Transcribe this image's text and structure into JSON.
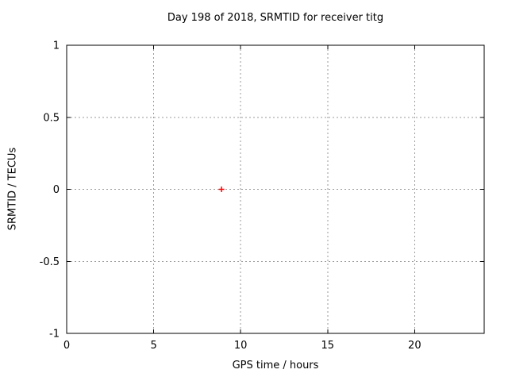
{
  "window": {
    "background": "#ffffff"
  },
  "chart_data": {
    "type": "scatter",
    "title": "Day 198 of 2018, SRMTID for receiver titg",
    "xlabel": "GPS time / hours",
    "ylabel": "SRMTID / TECUs",
    "xlim": [
      0,
      24
    ],
    "ylim": [
      -1,
      1
    ],
    "xticks": [
      0,
      5,
      10,
      15,
      20
    ],
    "yticks": [
      -1,
      -0.5,
      0,
      0.5,
      1
    ],
    "grid": true,
    "legend_position": "none",
    "series": [
      {
        "name": "SRMTID",
        "marker": "plus",
        "color": "#ff0000",
        "points": [
          [
            8.9,
            0.0
          ]
        ]
      }
    ],
    "style": {
      "border_color": "#000000",
      "grid_color": "#9a9a9a",
      "text_color": "#000000",
      "background": "#ffffff"
    }
  }
}
